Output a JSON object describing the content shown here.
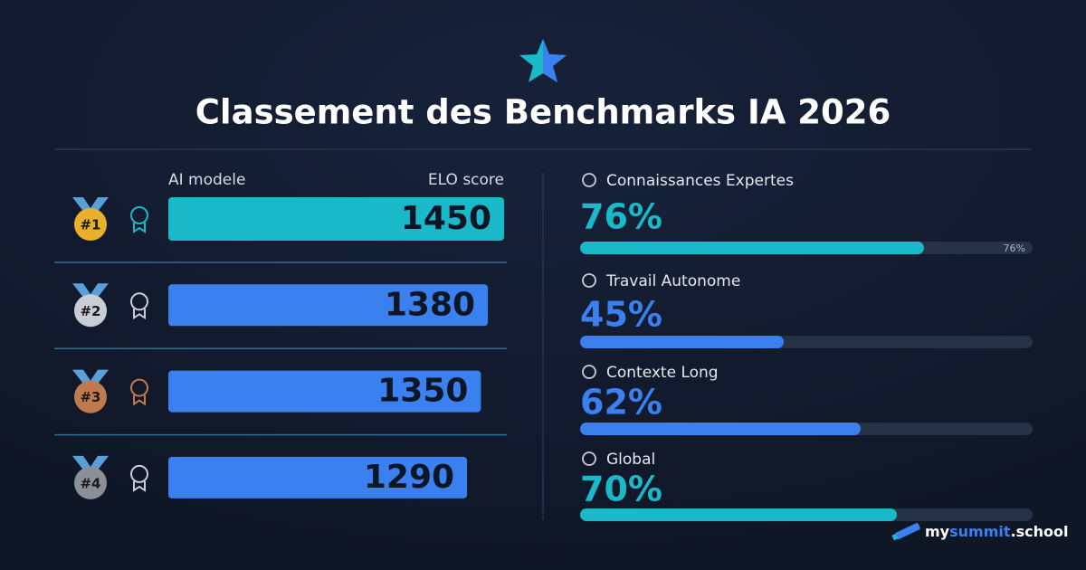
{
  "title": "Classement des Benchmarks IA 2026",
  "brand": [
    "my",
    "summit",
    ".school"
  ],
  "chart_data": [
    {
      "type": "hbar",
      "label_header": "AI modele",
      "value_header": "ELO score",
      "categories": [
        "#1",
        "#2",
        "#3",
        "#4"
      ],
      "values": [
        1450,
        1380,
        1350,
        1290
      ],
      "colors": [
        "#19b9c9",
        "#3a80ef",
        "#3a80ef",
        "#3a80ef"
      ],
      "xlim": [
        0,
        1450
      ]
    },
    {
      "type": "progress",
      "categories": [
        "Connaissances Expertes",
        "Travail Autonome",
        "Contexte Long",
        "Global"
      ],
      "values": [
        76,
        45,
        62,
        70
      ],
      "value_labels": [
        "76%",
        "45%",
        "62%",
        "70%"
      ],
      "colors": [
        "#19b9c9",
        "#3a80ef",
        "#3a80ef",
        "#19b9c9"
      ],
      "xlim": [
        0,
        100
      ]
    }
  ]
}
